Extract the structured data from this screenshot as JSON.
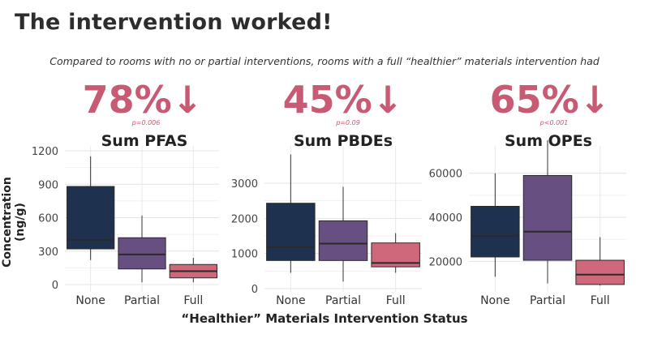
{
  "slide": {
    "title": "The intervention worked!",
    "subtitle": "Compared to rooms with no or partial interventions, rooms with a full “healthier” materials intervention had",
    "ylabel": "Concentration (ng/g)",
    "xlabel": "“Healthier” Materials Intervention Status"
  },
  "colors": {
    "None": "#1e324f",
    "Partial": "#674f82",
    "Full": "#d0687b",
    "accent": "#c85a73"
  },
  "chart_data": [
    {
      "type": "box",
      "title": "Sum PFAS",
      "reduction": "78%↓",
      "pvalue": "p=0.006",
      "ylim": [
        0,
        1200
      ],
      "yticks": [
        0,
        300,
        600,
        900,
        1200
      ],
      "categories": [
        "None",
        "Partial",
        "Full"
      ],
      "boxes": [
        {
          "category": "None",
          "min": 220,
          "q1": 320,
          "median": 400,
          "q3": 880,
          "max": 1150
        },
        {
          "category": "Partial",
          "min": 20,
          "q1": 140,
          "median": 270,
          "q3": 420,
          "max": 620
        },
        {
          "category": "Full",
          "min": 20,
          "q1": 60,
          "median": 120,
          "q3": 180,
          "max": 240
        }
      ]
    },
    {
      "type": "box",
      "title": "Sum PBDEs",
      "reduction": "45%↓",
      "pvalue": "p=0.09",
      "ylim": [
        0,
        3900
      ],
      "yticks": [
        0,
        1000,
        2000,
        3000
      ],
      "categories": [
        "None",
        "Partial",
        "Full"
      ],
      "boxes": [
        {
          "category": "None",
          "min": 450,
          "q1": 800,
          "median": 1180,
          "q3": 2430,
          "max": 3820
        },
        {
          "category": "Partial",
          "min": 200,
          "q1": 800,
          "median": 1280,
          "q3": 1930,
          "max": 2900
        },
        {
          "category": "Full",
          "min": 450,
          "q1": 620,
          "median": 730,
          "q3": 1300,
          "max": 1580
        }
      ]
    },
    {
      "type": "box",
      "title": "Sum OPEs",
      "reduction": "65%↓",
      "pvalue": "p<0.001",
      "ylim": [
        8000,
        75000
      ],
      "yticks": [
        20000,
        40000,
        60000
      ],
      "categories": [
        "None",
        "Partial",
        "Full"
      ],
      "boxes": [
        {
          "category": "None",
          "min": 13000,
          "q1": 22000,
          "median": 31500,
          "q3": 45000,
          "max": 60000
        },
        {
          "category": "Partial",
          "min": 10000,
          "q1": 20500,
          "median": 33500,
          "q3": 59000,
          "max": 75000
        },
        {
          "category": "Full",
          "min": 9000,
          "q1": 9500,
          "median": 14000,
          "q3": 20500,
          "max": 31000
        }
      ]
    }
  ]
}
